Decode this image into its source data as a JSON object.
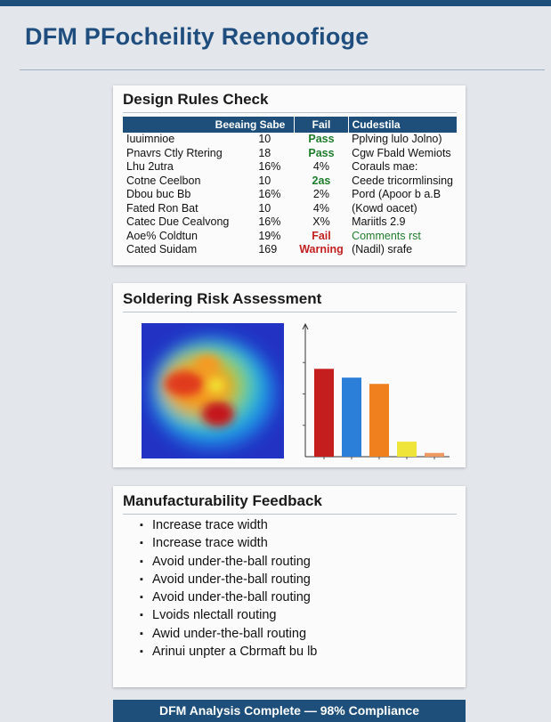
{
  "page": {
    "title": "DFM PFocheility Reenoofioge"
  },
  "rules_card": {
    "title": "Design Rules Check",
    "headers": {
      "name": "Beeaing Sabe",
      "fail": "Fail",
      "comments": "Cudestila"
    },
    "rows": [
      {
        "name": "Iuuimnioe",
        "value": "10",
        "status": "Pass",
        "status_type": "pass",
        "comment": "Pplving lulo Jolno)",
        "comment_type": "normal"
      },
      {
        "name": "Pnavrs Ctly Rtering",
        "value": "18",
        "status": "Pass",
        "status_type": "pass",
        "comment": "Cgw Fbald Wemiots",
        "comment_type": "normal"
      },
      {
        "name": "Lhu 2utra",
        "value": "16%",
        "status": "4%",
        "status_type": "normal",
        "comment": "Corauls mae:",
        "comment_type": "normal"
      },
      {
        "name": "Cotne Ceelbon",
        "value": "10",
        "status": "2as",
        "status_type": "pass",
        "comment": "Ceede tricormlinsing",
        "comment_type": "normal"
      },
      {
        "name": "Dbou buc Bb",
        "value": "16%",
        "status": "2%",
        "status_type": "normal",
        "comment": "Pord (Apoor b a.B",
        "comment_type": "normal"
      },
      {
        "name": "Fated Ron Bat",
        "value": "10",
        "status": "4%",
        "status_type": "normal",
        "comment": "(Kowd oacet)",
        "comment_type": "normal"
      },
      {
        "name": "Catec Due Cealvong",
        "value": "16%",
        "status": "X%",
        "status_type": "normal",
        "comment": "Mariitls 2.9",
        "comment_type": "normal"
      },
      {
        "name": "Aoe% Coldtun",
        "value": "19%",
        "status": "Fail",
        "status_type": "fail",
        "comment": "Comments rst",
        "comment_type": "green"
      },
      {
        "name": "Cated Suidam",
        "value": "169",
        "status": "Warning",
        "status_type": "warn",
        "comment": "(Nadil) srafe",
        "comment_type": "normal"
      }
    ]
  },
  "solder_card": {
    "title": "Soldering Risk Assessment",
    "heatmap_colors": [
      "#2233c4",
      "#1e88e5",
      "#35c3c8",
      "#8ccf3e",
      "#f0e030",
      "#f59a20",
      "#e03a1c",
      "#c4121a"
    ]
  },
  "chart_data": {
    "type": "bar",
    "categories": [
      "",
      "",
      "",
      "",
      ""
    ],
    "values": [
      70,
      63,
      58,
      12,
      3
    ],
    "colors": [
      "#c41e1e",
      "#2b7fd9",
      "#f07f1d",
      "#eee43a",
      "#ef9a63"
    ],
    "title": "",
    "xlabel": "",
    "ylabel": "",
    "ylim": [
      0,
      100
    ],
    "grid": false
  },
  "feedback_card": {
    "title": "Manufacturability Feedback",
    "items": [
      "Increase trace width",
      "Increase trace width",
      "Avoid under-the-ball routing",
      "Avoid under-the-ball routing",
      "Avoid under-the-ball routing",
      "Lvoids nlectall routing",
      "Awid under-the-ball routing",
      "Arinui unpter a Cbrmaft bu lb"
    ]
  },
  "footer": {
    "text": "DFM Analysis Complete — 98% Compliance"
  }
}
